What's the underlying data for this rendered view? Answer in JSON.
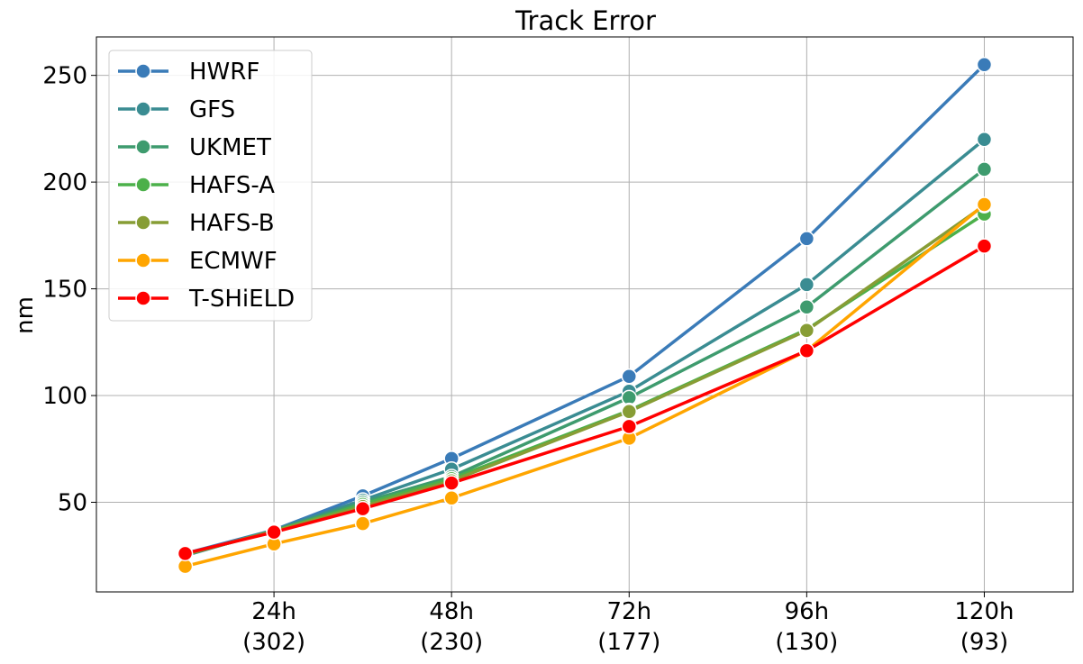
{
  "chart_data": {
    "type": "line",
    "title": "Track Error",
    "xlabel": "",
    "ylabel": "nm",
    "x": [
      12,
      24,
      36,
      48,
      72,
      96,
      120
    ],
    "xlim": [
      0,
      132
    ],
    "ylim": [
      8,
      268
    ],
    "x_ticks": [
      {
        "x": 24,
        "line1": "24h",
        "line2": "(302)"
      },
      {
        "x": 48,
        "line1": "48h",
        "line2": "(230)"
      },
      {
        "x": 72,
        "line1": "72h",
        "line2": "(177)"
      },
      {
        "x": 96,
        "line1": "96h",
        "line2": "(130)"
      },
      {
        "x": 120,
        "line1": "120h",
        "line2": "(93)"
      }
    ],
    "y_ticks": [
      50,
      100,
      150,
      200,
      250
    ],
    "grid": true,
    "legend_position": "top-left",
    "series": [
      {
        "name": "HWRF",
        "color": "#3a7bb8",
        "values": [
          26,
          37,
          53,
          70.5,
          109,
          173.5,
          255
        ]
      },
      {
        "name": "GFS",
        "color": "#3a8c92",
        "values": [
          25,
          37,
          51,
          65.5,
          102,
          152,
          220
        ]
      },
      {
        "name": "UKMET",
        "color": "#3e9b6e",
        "values": [
          25.5,
          36.5,
          50,
          62,
          99,
          141.5,
          206
        ]
      },
      {
        "name": "HAFS-A",
        "color": "#4cb04a",
        "values": [
          25.5,
          36.5,
          49,
          61,
          93,
          131,
          185
        ]
      },
      {
        "name": "HAFS-B",
        "color": "#879d35",
        "values": [
          25.5,
          36.5,
          48,
          60,
          92.5,
          130.5,
          189
        ]
      },
      {
        "name": "ECMWF",
        "color": "#ffa500",
        "values": [
          20,
          30.5,
          40,
          52,
          80,
          121,
          189.5
        ]
      },
      {
        "name": "T-SHiELD",
        "color": "#ff0000",
        "values": [
          26,
          36,
          47,
          59,
          85.5,
          121,
          170
        ]
      }
    ]
  }
}
